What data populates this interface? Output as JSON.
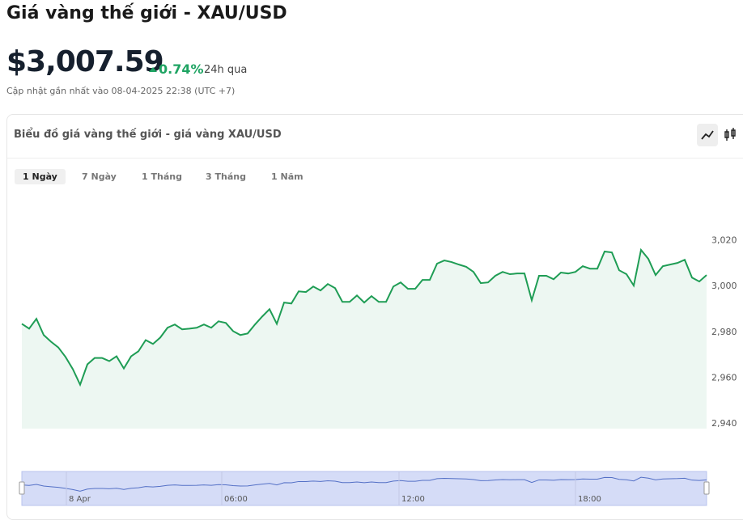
{
  "header": {
    "title": "Giá vàng thế giới - XAU/USD",
    "price": "$3,007.59",
    "change": "0.74%",
    "change_period": "24h qua",
    "updated": "Cập nhật gần nhất vào 08-04-2025 22:38 (UTC +7)"
  },
  "card": {
    "title": "Biểu đồ giá vàng thế giới - giá vàng XAU/USD",
    "tabs": [
      "1 Ngày",
      "7 Ngày",
      "1 Tháng",
      "3 Tháng",
      "1 Năm"
    ]
  },
  "chart_data": {
    "type": "area",
    "color": "#1f9d55",
    "ylim": [
      2937.5,
      3040
    ],
    "yticks": [
      {
        "value": 2940,
        "label": "2,940"
      },
      {
        "value": 2960,
        "label": "2,960"
      },
      {
        "value": 2980,
        "label": "2,980"
      },
      {
        "value": 3000,
        "label": "3,000"
      },
      {
        "value": 3020,
        "label": "3,020"
      }
    ],
    "values": [
      2983.3,
      2981.2,
      2985.5,
      2978.4,
      2975.5,
      2973.0,
      2968.8,
      2963.5,
      2956.7,
      2965.6,
      2968.4,
      2968.4,
      2967.0,
      2969.1,
      2963.8,
      2969.1,
      2971.3,
      2976.2,
      2974.5,
      2977.3,
      2981.6,
      2983.0,
      2980.9,
      2981.2,
      2981.6,
      2983.0,
      2981.6,
      2984.4,
      2983.7,
      2980.1,
      2978.4,
      2979.1,
      2983.0,
      2986.5,
      2989.7,
      2983.3,
      2992.6,
      2992.2,
      2997.5,
      2997.2,
      2999.6,
      2997.9,
      3000.7,
      2998.9,
      2992.9,
      2992.9,
      2995.7,
      2992.6,
      2995.4,
      2992.9,
      2992.9,
      2999.6,
      3001.4,
      2998.6,
      2998.6,
      3002.5,
      3002.5,
      3009.6,
      3011.0,
      3010.3,
      3009.2,
      3008.2,
      3006.0,
      3001.1,
      3001.4,
      3004.3,
      3006.0,
      3005.0,
      3005.3,
      3005.3,
      2993.6,
      3004.3,
      3004.3,
      3002.8,
      3005.7,
      3005.3,
      3006.0,
      3008.5,
      3007.4,
      3007.4,
      3014.9,
      3014.5,
      3006.7,
      3005.0,
      3000.0,
      3015.6,
      3011.7,
      3004.6,
      3008.5,
      3009.2,
      3009.9,
      3011.3,
      3003.5,
      3001.8,
      3004.6
    ],
    "navigator_labels": [
      "8 Apr",
      "06:00",
      "12:00",
      "18:00"
    ]
  }
}
